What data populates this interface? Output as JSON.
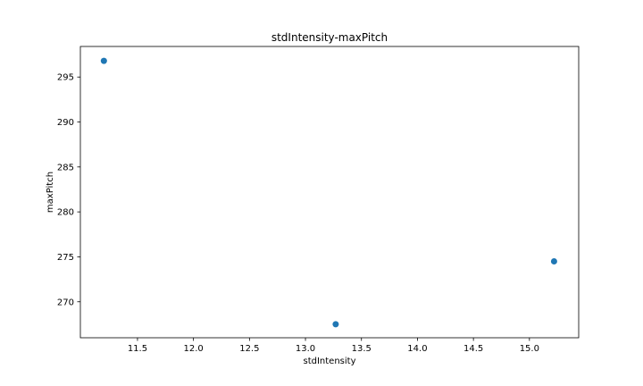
{
  "chart_data": {
    "type": "scatter",
    "title": "stdIntensity-maxPitch",
    "xlabel": "stdIntensity",
    "ylabel": "maxPitch",
    "xlim": [
      10.99,
      15.44
    ],
    "ylim": [
      266.0,
      298.4
    ],
    "x_ticks": [
      11.5,
      12.0,
      12.5,
      13.0,
      13.5,
      14.0,
      14.5,
      15.0
    ],
    "x_tick_labels": [
      "11.5",
      "12.0",
      "12.5",
      "13.0",
      "13.5",
      "14.0",
      "14.5",
      "15.0"
    ],
    "y_ticks": [
      270,
      275,
      280,
      285,
      290,
      295
    ],
    "y_tick_labels": [
      "270",
      "275",
      "280",
      "285",
      "290",
      "295"
    ],
    "grid": false,
    "series": [
      {
        "name": "maxPitch",
        "color": "#1f77b4",
        "x": [
          11.2,
          13.27,
          15.22
        ],
        "y": [
          296.8,
          267.5,
          274.5
        ]
      }
    ]
  }
}
